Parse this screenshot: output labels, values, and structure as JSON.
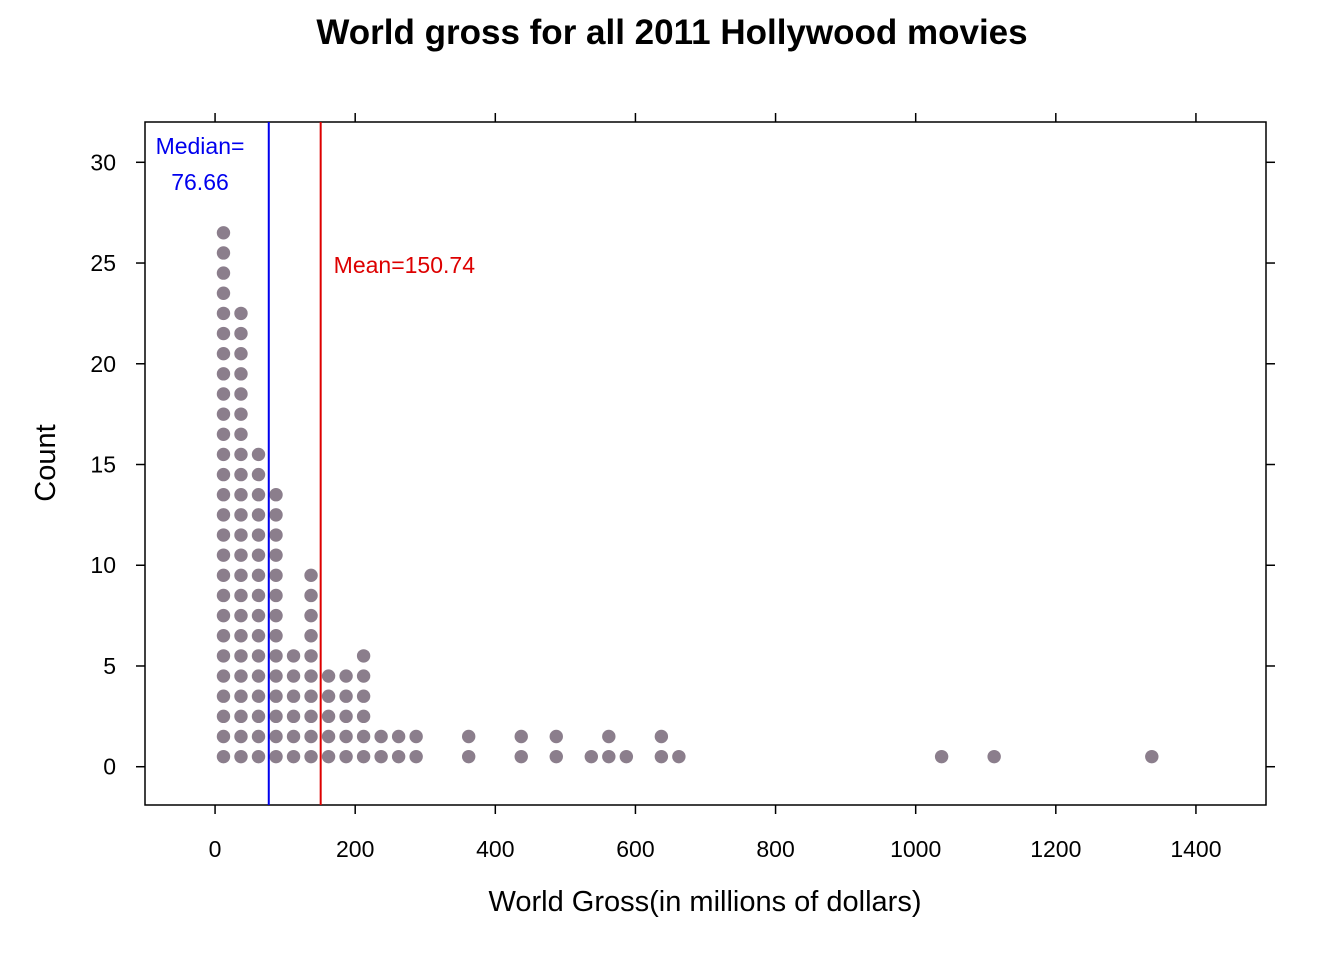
{
  "chart_data": {
    "type": "scatter",
    "subtype": "dot-histogram",
    "title": "World gross for all 2011 Hollywood movies",
    "xlabel": "World Gross(in millions of dollars)",
    "ylabel": "Count",
    "xlim": [
      -100,
      1500
    ],
    "ylim": [
      -1.9,
      32
    ],
    "x_ticks": [
      0,
      200,
      400,
      600,
      800,
      1000,
      1200,
      1400
    ],
    "y_ticks": [
      0,
      5,
      10,
      15,
      20,
      25,
      30
    ],
    "dot_color": "#8b7e8c",
    "bins": [
      {
        "x": 12,
        "count": 27
      },
      {
        "x": 37,
        "count": 23
      },
      {
        "x": 62,
        "count": 16
      },
      {
        "x": 87,
        "count": 14
      },
      {
        "x": 112,
        "count": 6
      },
      {
        "x": 137,
        "count": 10
      },
      {
        "x": 162,
        "count": 5
      },
      {
        "x": 187,
        "count": 5
      },
      {
        "x": 212,
        "count": 6
      },
      {
        "x": 237,
        "count": 2
      },
      {
        "x": 262,
        "count": 2
      },
      {
        "x": 287,
        "count": 2
      },
      {
        "x": 362,
        "count": 2
      },
      {
        "x": 437,
        "count": 2
      },
      {
        "x": 487,
        "count": 2
      },
      {
        "x": 537,
        "count": 1
      },
      {
        "x": 562,
        "count": 2
      },
      {
        "x": 587,
        "count": 1
      },
      {
        "x": 637,
        "count": 2
      },
      {
        "x": 662,
        "count": 1
      },
      {
        "x": 1037,
        "count": 1
      },
      {
        "x": 1112,
        "count": 1
      },
      {
        "x": 1337,
        "count": 1
      }
    ],
    "reference_lines": [
      {
        "label_lines": [
          "Median=",
          "76.66"
        ],
        "value": 76.66,
        "color": "#0000ee"
      },
      {
        "label_lines": [
          "Mean=150.74"
        ],
        "value": 150.74,
        "color": "#dd0000"
      }
    ]
  }
}
